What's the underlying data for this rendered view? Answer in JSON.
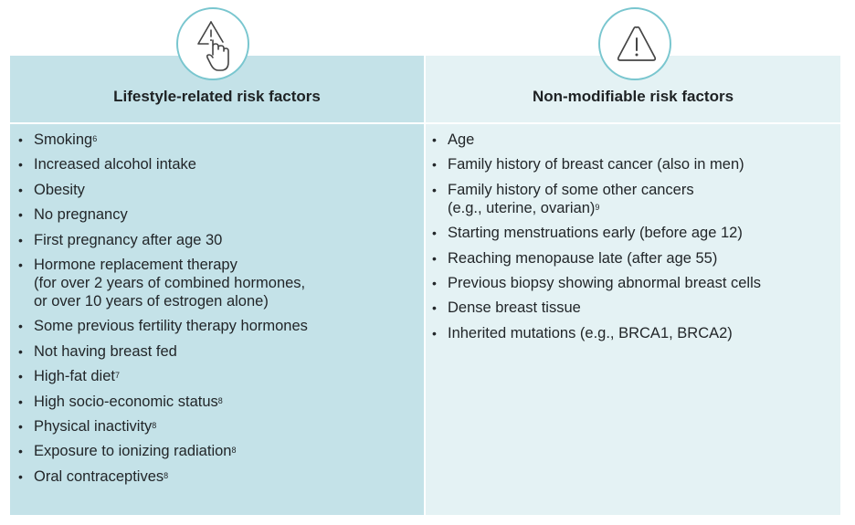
{
  "left": {
    "title": "Lifestyle-related risk factors",
    "icon": "warning-touch-icon",
    "items": [
      {
        "lines": [
          "Smoking"
        ],
        "sup": "6"
      },
      {
        "lines": [
          "Increased alcohol intake"
        ],
        "sup": ""
      },
      {
        "lines": [
          "Obesity"
        ],
        "sup": ""
      },
      {
        "lines": [
          "No pregnancy"
        ],
        "sup": ""
      },
      {
        "lines": [
          "First pregnancy after age 30"
        ],
        "sup": ""
      },
      {
        "lines": [
          "Hormone replacement therapy",
          "(for over 2 years of combined hormones,",
          "or over 10 years of estrogen alone)"
        ],
        "sup": ""
      },
      {
        "lines": [
          "Some previous fertility therapy hormones"
        ],
        "sup": ""
      },
      {
        "lines": [
          "Not having breast fed"
        ],
        "sup": ""
      },
      {
        "lines": [
          "High-fat diet"
        ],
        "sup": "7"
      },
      {
        "lines": [
          "High socio-economic status"
        ],
        "sup": "8"
      },
      {
        "lines": [
          "Physical inactivity"
        ],
        "sup": "8"
      },
      {
        "lines": [
          "Exposure to ionizing radiation"
        ],
        "sup": "8"
      },
      {
        "lines": [
          "Oral contraceptives"
        ],
        "sup": "8"
      }
    ]
  },
  "right": {
    "title": "Non-modifiable risk factors",
    "icon": "warning-triangle-icon",
    "items": [
      {
        "lines": [
          "Age"
        ],
        "sup": ""
      },
      {
        "lines": [
          "Family history of breast cancer (also in men)"
        ],
        "sup": ""
      },
      {
        "lines": [
          "Family history of some other cancers",
          "(e.g., uterine, ovarian)"
        ],
        "sup": "9"
      },
      {
        "lines": [
          "Starting menstruations early (before age 12)"
        ],
        "sup": ""
      },
      {
        "lines": [
          "Reaching menopause late (after age 55)"
        ],
        "sup": ""
      },
      {
        "lines": [
          "Previous biopsy showing abnormal breast cells"
        ],
        "sup": ""
      },
      {
        "lines": [
          "Dense breast tissue"
        ],
        "sup": ""
      },
      {
        "lines": [
          "Inherited mutations (e.g., BRCA1, BRCA2)"
        ],
        "sup": ""
      }
    ]
  },
  "colors": {
    "left_bg": "#c4e2e8",
    "right_bg": "#e4f2f4",
    "icon_ring": "#79c6cf"
  }
}
